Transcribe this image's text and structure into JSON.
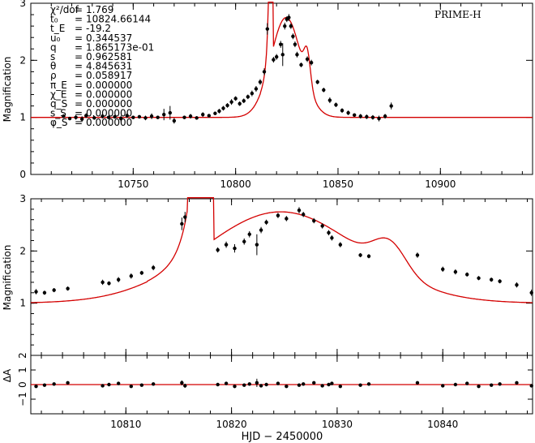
{
  "chart_data": [
    {
      "type": "scatter",
      "name": "full-lightcurve",
      "telescope_label": "PRIME-H",
      "ylabel": "Magnification",
      "xlim": [
        10700,
        10945
      ],
      "ylim": [
        0,
        3
      ],
      "xticks": [
        10750,
        10800,
        10850,
        10900
      ],
      "yticks": [
        0,
        1,
        2,
        3
      ],
      "params": [
        {
          "sym": "χ²/dof",
          "eq": "=",
          "val": "1.769"
        },
        {
          "sym": "t₀",
          "eq": "=",
          "val": "10824.66144"
        },
        {
          "sym": "t_E",
          "eq": "=",
          "val": "-19.2"
        },
        {
          "sym": "u₀",
          "eq": "=",
          "val": "0.344537"
        },
        {
          "sym": "q",
          "eq": "=",
          "val": "1.865173e-01"
        },
        {
          "sym": "s",
          "eq": "=",
          "val": "0.962581"
        },
        {
          "sym": "θ",
          "eq": "=",
          "val": "4.845631"
        },
        {
          "sym": "ρ",
          "eq": "=",
          "val": "0.058917"
        },
        {
          "sym": "π_E",
          "eq": "=",
          "val": "0.000000"
        },
        {
          "sym": "χ_E",
          "eq": "=",
          "val": "0.000000"
        },
        {
          "sym": "q_S",
          "eq": "=",
          "val": "0.000000"
        },
        {
          "sym": "s_S",
          "eq": "=",
          "val": "0.000000"
        },
        {
          "sym": "φ_S",
          "eq": "=",
          "val": "0.000000"
        }
      ],
      "data_points": [
        [
          10716,
          1.02,
          0.03
        ],
        [
          10719,
          0.98,
          0.03
        ],
        [
          10722,
          1.0,
          0.04
        ],
        [
          10725,
          0.97,
          0.05
        ],
        [
          10727,
          1.03,
          0.04
        ],
        [
          10731,
          0.99,
          0.03
        ],
        [
          10735,
          1.02,
          0.04
        ],
        [
          10738,
          1.0,
          0.03
        ],
        [
          10741,
          1.01,
          0.03
        ],
        [
          10744,
          0.98,
          0.05
        ],
        [
          10747,
          1.03,
          0.04
        ],
        [
          10750,
          1.0,
          0.03
        ],
        [
          10753,
          1.01,
          0.03
        ],
        [
          10756,
          0.99,
          0.04
        ],
        [
          10759,
          1.02,
          0.05
        ],
        [
          10762,
          1.0,
          0.03
        ],
        [
          10765,
          1.05,
          0.1
        ],
        [
          10768,
          1.08,
          0.12
        ],
        [
          10770,
          0.94,
          0.05
        ],
        [
          10775,
          1.0,
          0.03
        ],
        [
          10778,
          1.02,
          0.04
        ],
        [
          10781,
          0.99,
          0.03
        ],
        [
          10784,
          1.05,
          0.04
        ],
        [
          10787,
          1.03,
          0.03
        ],
        [
          10790,
          1.07,
          0.03
        ],
        [
          10792,
          1.11,
          0.04
        ],
        [
          10794,
          1.16,
          0.04
        ],
        [
          10796,
          1.21,
          0.04
        ],
        [
          10798,
          1.27,
          0.05
        ],
        [
          10800,
          1.33,
          0.04
        ],
        [
          10802,
          1.24,
          0.04
        ],
        [
          10804,
          1.29,
          0.04
        ],
        [
          10806,
          1.36,
          0.04
        ],
        [
          10808,
          1.42,
          0.05
        ],
        [
          10810,
          1.5,
          0.05
        ],
        [
          10812,
          1.62,
          0.05
        ],
        [
          10814,
          1.8,
          0.06
        ],
        [
          10815.5,
          2.55,
          0.1
        ],
        [
          10818.5,
          2.01,
          0.05
        ],
        [
          10820,
          2.06,
          0.05
        ],
        [
          10822,
          2.28,
          0.06
        ],
        [
          10823,
          2.1,
          0.2
        ],
        [
          10824,
          2.6,
          0.06
        ],
        [
          10825,
          2.72,
          0.05
        ],
        [
          10826,
          2.75,
          0.06
        ],
        [
          10827,
          2.6,
          0.05
        ],
        [
          10828,
          2.42,
          0.05
        ],
        [
          10829,
          2.28,
          0.05
        ],
        [
          10830,
          2.1,
          0.05
        ],
        [
          10832,
          1.92,
          0.04
        ],
        [
          10835,
          2.02,
          0.05
        ],
        [
          10837,
          1.96,
          0.05
        ],
        [
          10840,
          1.62,
          0.04
        ],
        [
          10843,
          1.48,
          0.04
        ],
        [
          10846,
          1.3,
          0.05
        ],
        [
          10849,
          1.22,
          0.04
        ],
        [
          10852,
          1.12,
          0.04
        ],
        [
          10855,
          1.08,
          0.04
        ],
        [
          10858,
          1.04,
          0.03
        ],
        [
          10861,
          1.02,
          0.04
        ],
        [
          10864,
          1.01,
          0.04
        ],
        [
          10867,
          1.0,
          0.04
        ],
        [
          10870,
          0.98,
          0.05
        ],
        [
          10873,
          1.02,
          0.04
        ],
        [
          10876,
          1.2,
          0.06
        ]
      ]
    },
    {
      "type": "scatter",
      "name": "zoom-lightcurve",
      "ylabel": "Magnification",
      "xlim": [
        10801,
        10848.5
      ],
      "ylim": [
        0,
        3
      ],
      "yticks": [
        1,
        2,
        3
      ],
      "data_points": [
        [
          10801.5,
          1.22,
          0.05
        ],
        [
          10802.3,
          1.2,
          0.04
        ],
        [
          10803.2,
          1.25,
          0.04
        ],
        [
          10804.5,
          1.28,
          0.04
        ],
        [
          10807.8,
          1.4,
          0.05
        ],
        [
          10808.4,
          1.38,
          0.04
        ],
        [
          10809.3,
          1.45,
          0.05
        ],
        [
          10810.5,
          1.52,
          0.05
        ],
        [
          10811.5,
          1.58,
          0.04
        ],
        [
          10812.6,
          1.68,
          0.05
        ],
        [
          10815.3,
          2.52,
          0.12
        ],
        [
          10815.6,
          2.65,
          0.1
        ],
        [
          10818.7,
          2.02,
          0.05
        ],
        [
          10819.5,
          2.12,
          0.06
        ],
        [
          10820.3,
          2.05,
          0.08
        ],
        [
          10821.2,
          2.18,
          0.06
        ],
        [
          10821.7,
          2.32,
          0.06
        ],
        [
          10822.4,
          2.12,
          0.2
        ],
        [
          10822.8,
          2.4,
          0.06
        ],
        [
          10823.3,
          2.55,
          0.05
        ],
        [
          10824.4,
          2.68,
          0.05
        ],
        [
          10825.2,
          2.62,
          0.05
        ],
        [
          10826.4,
          2.78,
          0.06
        ],
        [
          10826.8,
          2.7,
          0.05
        ],
        [
          10827.8,
          2.58,
          0.05
        ],
        [
          10828.6,
          2.48,
          0.05
        ],
        [
          10829.2,
          2.35,
          0.05
        ],
        [
          10829.5,
          2.25,
          0.05
        ],
        [
          10830.3,
          2.12,
          0.05
        ],
        [
          10832.2,
          1.92,
          0.04
        ],
        [
          10833.0,
          1.9,
          0.04
        ],
        [
          10837.6,
          1.92,
          0.05
        ],
        [
          10840.0,
          1.65,
          0.05
        ],
        [
          10841.2,
          1.6,
          0.05
        ],
        [
          10842.3,
          1.55,
          0.04
        ],
        [
          10843.4,
          1.48,
          0.04
        ],
        [
          10844.6,
          1.45,
          0.04
        ],
        [
          10845.4,
          1.42,
          0.04
        ],
        [
          10847.0,
          1.35,
          0.05
        ],
        [
          10848.4,
          1.2,
          0.06
        ]
      ]
    },
    {
      "type": "scatter",
      "name": "residuals",
      "ylabel": "ΔA",
      "xlabel": "HJD − 2450000",
      "xlim": [
        10801,
        10848.5
      ],
      "ylim": [
        -2,
        2
      ],
      "yticks": [
        -1,
        0,
        1,
        2
      ],
      "xticks": [
        10810,
        10820,
        10830,
        10840
      ],
      "ytick_labels": [
        "−1",
        "0",
        "1",
        "2"
      ],
      "xtick_labels": [
        "10810",
        "10820",
        "10830",
        "10840"
      ]
    }
  ]
}
